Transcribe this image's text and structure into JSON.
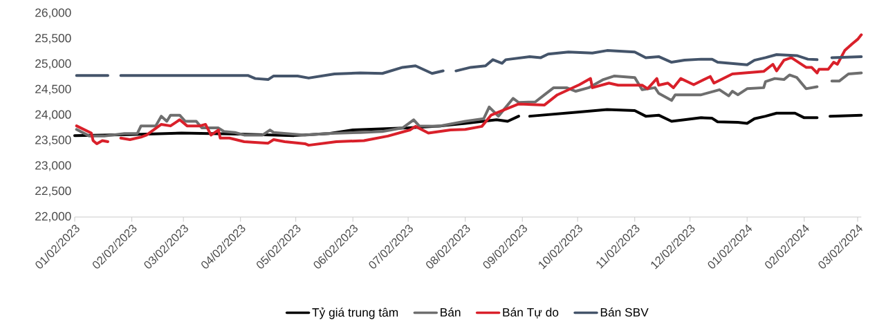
{
  "chart_data": {
    "type": "line",
    "line_style": "solid",
    "legend": "bottom",
    "xlim": [
      "2023-01-02",
      "2024-03-04"
    ],
    "ylim": [
      22000,
      26000
    ],
    "yticks": [
      {
        "value": 22000,
        "label": "22,000"
      },
      {
        "value": 22500,
        "label": "22,500"
      },
      {
        "value": 23000,
        "label": "23,000"
      },
      {
        "value": 23500,
        "label": "23,500"
      },
      {
        "value": 24000,
        "label": "24,000"
      },
      {
        "value": 24500,
        "label": "24,500"
      },
      {
        "value": 25000,
        "label": "25,000"
      },
      {
        "value": 25500,
        "label": "25,500"
      },
      {
        "value": 26000,
        "label": "26,000"
      }
    ],
    "xticks": [
      {
        "value": "2023-01-02",
        "label": "01/02/2023"
      },
      {
        "value": "2023-02-02",
        "label": "02/02/2023"
      },
      {
        "value": "2023-03-02",
        "label": "03/02/2023"
      },
      {
        "value": "2023-04-02",
        "label": "04/02/2023"
      },
      {
        "value": "2023-05-02",
        "label": "05/02/2023"
      },
      {
        "value": "2023-06-02",
        "label": "06/02/2023"
      },
      {
        "value": "2023-07-02",
        "label": "07/02/2023"
      },
      {
        "value": "2023-08-02",
        "label": "08/02/2023"
      },
      {
        "value": "2023-09-02",
        "label": "09/02/2023"
      },
      {
        "value": "2023-10-02",
        "label": "10/02/2023"
      },
      {
        "value": "2023-11-02",
        "label": "11/02/2023"
      },
      {
        "value": "2023-12-02",
        "label": "12/02/2023"
      },
      {
        "value": "2024-01-02",
        "label": "01/02/2024"
      },
      {
        "value": "2024-02-02",
        "label": "02/02/2024"
      },
      {
        "value": "2024-03-02",
        "label": "03/02/2024"
      }
    ],
    "series": [
      {
        "name": "Tỷ giá trung tâm",
        "color": "#000000",
        "x": [
          "2023-01-02",
          "2023-02-01",
          "2023-03-01",
          "2023-04-01",
          "2023-05-01",
          "2023-05-20",
          "2023-06-02",
          "2023-07-02",
          "2023-07-20",
          "2023-08-02",
          "2023-08-19",
          "2023-08-25",
          "2023-08-31",
          "2023-09-03",
          "2023-09-06",
          "2023-10-02",
          "2023-10-18",
          "2023-11-02",
          "2023-11-08",
          "2023-11-15",
          "2023-11-22",
          "2023-11-29",
          "2023-12-08",
          "2023-12-14",
          "2023-12-17",
          "2023-12-28",
          "2024-01-02",
          "2024-01-06",
          "2024-01-12",
          "2024-01-18",
          "2024-01-28",
          "2024-02-02",
          "2024-02-09",
          "2024-02-13",
          "2024-02-16",
          "2024-03-04"
        ],
        "values": [
          23600,
          23620,
          23650,
          23630,
          23600,
          23640,
          23710,
          23750,
          23790,
          23840,
          23910,
          23880,
          23980,
          null,
          23980,
          24060,
          24110,
          24090,
          23980,
          24000,
          23880,
          23910,
          23950,
          23940,
          23870,
          23860,
          23840,
          23930,
          23980,
          24040,
          24040,
          23950,
          23950,
          null,
          23980,
          24000
        ]
      },
      {
        "name": "Bán",
        "color": "#6e6e6e",
        "x": [
          "2023-01-03",
          "2023-01-10",
          "2023-01-18",
          "2023-01-29",
          "2023-02-05",
          "2023-02-07",
          "2023-02-15",
          "2023-02-18",
          "2023-02-21",
          "2023-02-23",
          "2023-02-28",
          "2023-03-03",
          "2023-03-09",
          "2023-03-12",
          "2023-03-21",
          "2023-03-24",
          "2023-03-30",
          "2023-04-04",
          "2023-04-14",
          "2023-04-18",
          "2023-04-20",
          "2023-05-07",
          "2023-05-18",
          "2023-06-06",
          "2023-06-18",
          "2023-06-29",
          "2023-07-05",
          "2023-07-08",
          "2023-07-18",
          "2023-08-02",
          "2023-08-12",
          "2023-08-15",
          "2023-08-20",
          "2023-08-28",
          "2023-08-31",
          "2023-09-09",
          "2023-09-14",
          "2023-09-19",
          "2023-09-26",
          "2023-10-01",
          "2023-10-08",
          "2023-10-16",
          "2023-10-22",
          "2023-11-02",
          "2023-11-06",
          "2023-11-13",
          "2023-11-15",
          "2023-11-22",
          "2023-11-24",
          "2023-12-08",
          "2023-12-18",
          "2023-12-23",
          "2023-12-25",
          "2023-12-28",
          "2024-01-02",
          "2024-01-11",
          "2024-01-12",
          "2024-01-17",
          "2024-01-22",
          "2024-01-25",
          "2024-01-29",
          "2024-02-03",
          "2024-02-09",
          "2024-02-12",
          "2024-02-17",
          "2024-02-21",
          "2024-02-26",
          "2024-03-04"
        ],
        "values": [
          23720,
          23590,
          23590,
          23640,
          23640,
          23790,
          23790,
          23980,
          23880,
          24000,
          24000,
          23880,
          23880,
          23750,
          23750,
          23680,
          23660,
          23610,
          23610,
          23710,
          23660,
          23610,
          23640,
          23660,
          23680,
          23750,
          23910,
          23790,
          23780,
          23880,
          23930,
          24160,
          23980,
          24330,
          24250,
          24260,
          24400,
          24540,
          24540,
          24470,
          24540,
          24700,
          24770,
          24740,
          24500,
          24540,
          24430,
          24290,
          24400,
          24400,
          24500,
          24380,
          24470,
          24400,
          24520,
          24540,
          24660,
          24720,
          24700,
          24790,
          24740,
          24520,
          24560,
          null,
          24670,
          24670,
          24810,
          24830
        ]
      },
      {
        "name": "Bán Tự do",
        "color": "#d9202a",
        "x": [
          "2023-01-03",
          "2023-01-07",
          "2023-01-11",
          "2023-01-12",
          "2023-01-14",
          "2023-01-17",
          "2023-01-20",
          "2023-01-23",
          "2023-01-27",
          "2023-02-01",
          "2023-02-07",
          "2023-02-10",
          "2023-02-18",
          "2023-02-23",
          "2023-02-28",
          "2023-03-04",
          "2023-03-11",
          "2023-03-14",
          "2023-03-17",
          "2023-03-21",
          "2023-03-22",
          "2023-03-27",
          "2023-04-04",
          "2023-04-17",
          "2023-04-20",
          "2023-04-26",
          "2023-05-07",
          "2023-05-09",
          "2023-05-24",
          "2023-06-08",
          "2023-06-21",
          "2023-07-03",
          "2023-07-06",
          "2023-07-13",
          "2023-07-25",
          "2023-08-02",
          "2023-08-11",
          "2023-08-16",
          "2023-08-22",
          "2023-08-31",
          "2023-09-14",
          "2023-09-21",
          "2023-10-03",
          "2023-10-09",
          "2023-10-10",
          "2023-10-19",
          "2023-10-24",
          "2023-11-06",
          "2023-11-09",
          "2023-11-14",
          "2023-11-15",
          "2023-11-20",
          "2023-11-23",
          "2023-11-27",
          "2023-12-04",
          "2023-12-13",
          "2023-12-15",
          "2023-12-25",
          "2024-01-11",
          "2024-01-16",
          "2024-01-18",
          "2024-01-22",
          "2024-01-26",
          "2024-02-03",
          "2024-02-06",
          "2024-02-09",
          "2024-02-10",
          "2024-02-15",
          "2024-02-18",
          "2024-02-20",
          "2024-02-24",
          "2024-02-28",
          "2024-03-02",
          "2024-03-04"
        ],
        "values": [
          23790,
          23720,
          23650,
          23500,
          23440,
          23500,
          23480,
          null,
          23550,
          23520,
          23570,
          23610,
          23820,
          23790,
          23910,
          23790,
          23790,
          23820,
          23610,
          23710,
          23550,
          23550,
          23480,
          23450,
          23520,
          23480,
          23440,
          23410,
          23480,
          23500,
          23590,
          23710,
          23780,
          23650,
          23710,
          23720,
          23780,
          24000,
          24090,
          24220,
          24200,
          24400,
          24600,
          24720,
          24540,
          24630,
          24590,
          24590,
          24520,
          24720,
          24590,
          24630,
          24540,
          24720,
          24600,
          24760,
          24630,
          24810,
          24860,
          25000,
          24870,
          25080,
          25130,
          24940,
          24940,
          24830,
          24900,
          24900,
          25040,
          25000,
          25270,
          25400,
          25490,
          25580
        ]
      },
      {
        "name": "Bán SBV",
        "color": "#44546a",
        "x": [
          "2023-01-03",
          "2023-01-20",
          "2023-01-23",
          "2023-01-27",
          "2023-04-06",
          "2023-04-10",
          "2023-04-17",
          "2023-04-20",
          "2023-05-03",
          "2023-05-09",
          "2023-05-23",
          "2023-06-06",
          "2023-06-18",
          "2023-06-29",
          "2023-07-06",
          "2023-07-15",
          "2023-07-21",
          "2023-07-24",
          "2023-07-28",
          "2023-08-05",
          "2023-08-13",
          "2023-08-17",
          "2023-08-22",
          "2023-08-24",
          "2023-09-06",
          "2023-09-12",
          "2023-09-16",
          "2023-09-27",
          "2023-10-10",
          "2023-10-18",
          "2023-11-02",
          "2023-11-08",
          "2023-11-15",
          "2023-11-22",
          "2023-11-29",
          "2023-12-08",
          "2023-12-14",
          "2023-12-17",
          "2024-01-02",
          "2024-01-06",
          "2024-01-12",
          "2024-01-18",
          "2024-01-29",
          "2024-02-04",
          "2024-02-09",
          "2024-02-12",
          "2024-02-17",
          "2024-03-04"
        ],
        "values": [
          24780,
          24780,
          null,
          24780,
          24780,
          24720,
          24700,
          24770,
          24770,
          24730,
          24810,
          24830,
          24820,
          24940,
          24970,
          24820,
          24870,
          null,
          24870,
          24940,
          24970,
          25090,
          25020,
          25090,
          25150,
          25130,
          25200,
          25240,
          25220,
          25270,
          25240,
          25130,
          25150,
          25040,
          25080,
          25100,
          25100,
          25040,
          24990,
          25080,
          25130,
          25190,
          25170,
          25100,
          25090,
          null,
          25130,
          25150
        ]
      }
    ]
  }
}
